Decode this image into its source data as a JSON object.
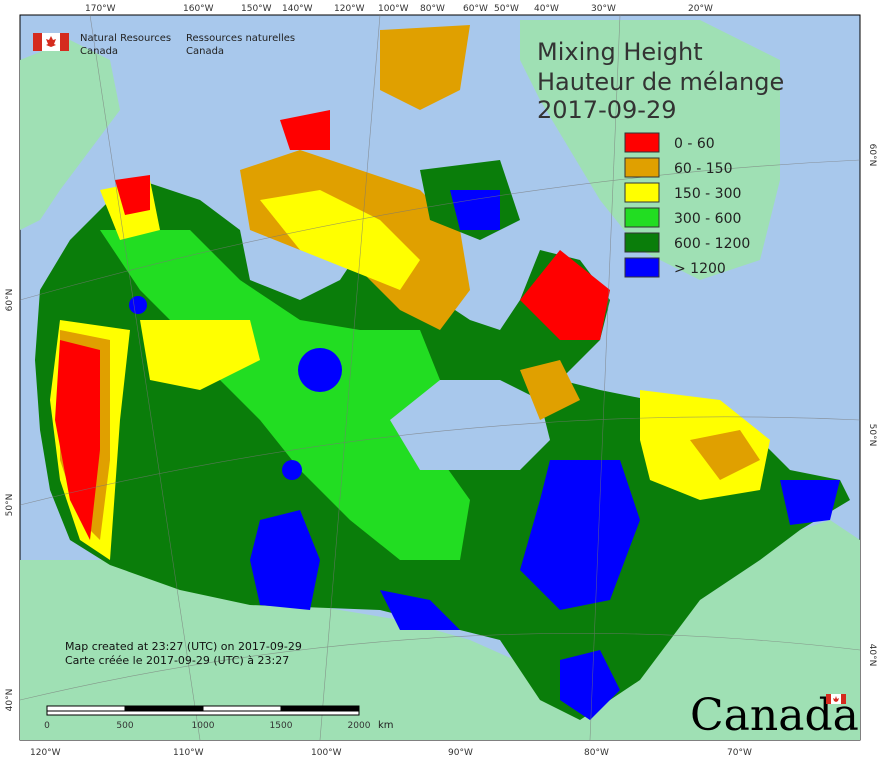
{
  "header": {
    "agency_en_1": "Natural Resources",
    "agency_en_2": "Canada",
    "agency_fr_1": "Ressources naturelles",
    "agency_fr_2": "Canada"
  },
  "title": {
    "en": "Mixing Height",
    "fr": "Hauteur de mélange",
    "date": "2017-09-29"
  },
  "legend": [
    {
      "label": "0 - 60",
      "color": "#ff0000"
    },
    {
      "label": "60 - 150",
      "color": "#e0a000"
    },
    {
      "label": "150 - 300",
      "color": "#ffff00"
    },
    {
      "label": "300 - 600",
      "color": "#22dd22"
    },
    {
      "label": "600 - 1200",
      "color": "#0a7d0a"
    },
    {
      "label": "> 1200",
      "color": "#0000ff"
    }
  ],
  "top_ticks": [
    "170°W",
    "160°W",
    "150°W",
    "140°W",
    "120°W",
    "100°W",
    "80°W",
    "60°W",
    "50°W",
    "40°W",
    "30°W",
    "20°W"
  ],
  "bottom_ticks": [
    "120°W",
    "110°W",
    "100°W",
    "90°W",
    "80°W",
    "70°W"
  ],
  "left_ticks": [
    "60°N",
    "50°N",
    "40°N"
  ],
  "right_ticks": [
    "60°N",
    "50°N",
    "40°N"
  ],
  "credit": {
    "line1": "Map created at 23:27 (UTC) on 2017-09-29",
    "line2": "Carte créée le 2017-09-29 (UTC) à 23:27"
  },
  "scale_bar": {
    "labels": [
      "0",
      "500",
      "1000",
      "1500",
      "2000"
    ],
    "unit": "km"
  },
  "wordmark": "Canada",
  "colors": {
    "ocean": "#a8c8ec",
    "foreign_land": "#9fe0b4",
    "frame": "#000000"
  }
}
